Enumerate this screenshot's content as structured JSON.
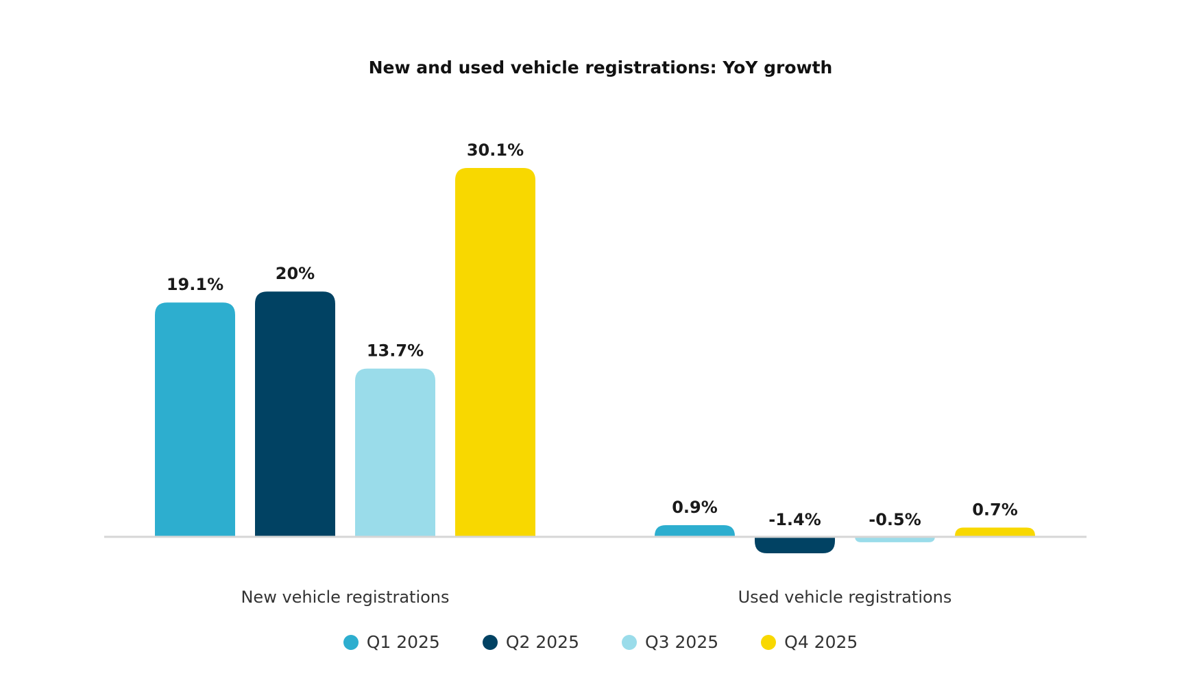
{
  "chart_data": {
    "type": "bar",
    "title": "New and used vehicle registrations: YoY growth",
    "xlabel": "",
    "ylabel": "",
    "categories": [
      "New vehicle registrations",
      "Used vehicle registrations"
    ],
    "series": [
      {
        "name": "Q1 2025",
        "color": "#2daecf",
        "values": [
          19.1,
          0.9
        ],
        "labels": [
          "19.1%",
          "0.9%"
        ]
      },
      {
        "name": "Q2 2025",
        "color": "#014263",
        "values": [
          20.0,
          -1.4
        ],
        "labels": [
          "20%",
          "-1.4%"
        ]
      },
      {
        "name": "Q3 2025",
        "color": "#9adcea",
        "values": [
          13.7,
          -0.5
        ],
        "labels": [
          "13.7%",
          "-0.5%"
        ]
      },
      {
        "name": "Q4 2025",
        "color": "#f8d800",
        "values": [
          30.1,
          0.7
        ],
        "labels": [
          "30.1%",
          "0.7%"
        ]
      }
    ],
    "ylim": [
      -1.4,
      30.1
    ],
    "grid": false,
    "legend": "bottom-center",
    "axis_line_color": "#d6d6d6"
  }
}
